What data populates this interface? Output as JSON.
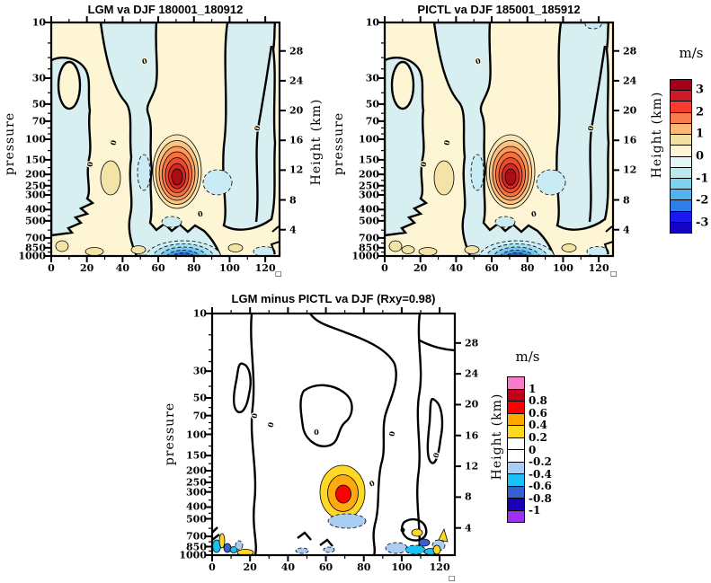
{
  "axes_misc": {
    "x_corner_symbol": "□"
  },
  "chart_data": [
    {
      "type": "contour",
      "title": "LGM va DJF 180001_180912",
      "units": "m/s",
      "ylabel_left": "pressure",
      "ylabel_right": "Height (km)",
      "x_ticks": [
        0,
        20,
        40,
        60,
        80,
        100,
        120
      ],
      "x_range": [
        0,
        128
      ],
      "pressure_ticks": [
        10,
        30,
        50,
        70,
        100,
        150,
        200,
        250,
        300,
        400,
        500,
        700,
        850,
        1000
      ],
      "pressure_range_hPa": [
        10,
        1000
      ],
      "height_km_ticks": [
        28,
        24,
        20,
        16,
        12,
        8,
        4
      ],
      "contour_interval_m_s": 0.5,
      "levels": [
        -3,
        -2.5,
        -2,
        -1.5,
        -1,
        -0.5,
        0,
        0.5,
        1,
        1.5,
        2,
        2.5,
        3
      ],
      "line_style": "zero contour thick solid labeled 0; negative contours dashed",
      "features": [
        {
          "desc": "strong positive anomaly maximum",
          "x": 68,
          "pressure_hPa": 200,
          "value_m_s": "> 3.5"
        },
        {
          "desc": "strong negative anomaly near surface",
          "x": 70,
          "pressure_hPa": 925,
          "value_m_s": "< -3"
        },
        {
          "desc": "weak positive cell",
          "x": 33,
          "pressure_hPa": 200,
          "value_m_s": "0.5 to 1"
        },
        {
          "desc": "weak negative cells",
          "x": "50 and 92",
          "pressure_hPa": 200,
          "value_m_s": "-1 to -0.5"
        },
        {
          "desc": "weak positive patches along surface",
          "x": "5, 25, 50, 103",
          "pressure_hPa": "900-1000",
          "value_m_s": "0.5 to 1"
        }
      ],
      "colorbar": {
        "units": "m/s",
        "tick_labels": [
          "3",
          "2",
          "1",
          "0",
          "-1",
          "-2",
          "-3"
        ],
        "colors": [
          "#a10018",
          "#cb1b28",
          "#f93b31",
          "#f97c4e",
          "#fdb874",
          "#f2e0a2",
          "#fdf5d3",
          "#e2f6f3",
          "#bce9ee",
          "#7fd2ee",
          "#52b2ee",
          "#2f7de8",
          "#1a1aee",
          "#1502c4"
        ]
      }
    },
    {
      "type": "contour",
      "title": "PICTL va DJF 185001_185912",
      "units": "m/s",
      "ylabel_left": "pressure",
      "ylabel_right": "Height (km)",
      "x_ticks": [
        0,
        20,
        40,
        60,
        80,
        100,
        120
      ],
      "x_range": [
        0,
        128
      ],
      "pressure_ticks": [
        10,
        30,
        50,
        70,
        100,
        150,
        200,
        250,
        300,
        400,
        500,
        700,
        850,
        1000
      ],
      "pressure_range_hPa": [
        10,
        1000
      ],
      "height_km_ticks": [
        28,
        24,
        20,
        16,
        12,
        8,
        4
      ],
      "contour_interval_m_s": 0.5,
      "levels": [
        -3,
        -2.5,
        -2,
        -1.5,
        -1,
        -0.5,
        0,
        0.5,
        1,
        1.5,
        2,
        2.5,
        3
      ],
      "line_style": "zero contour thick solid labeled 0; negative contours dashed",
      "features": [
        {
          "desc": "strong positive anomaly maximum",
          "x": 68,
          "pressure_hPa": 200,
          "value_m_s": "> 3.5"
        },
        {
          "desc": "strong negative anomaly near surface",
          "x": 70,
          "pressure_hPa": 925,
          "value_m_s": "< -3"
        },
        {
          "desc": "weak positive cell",
          "x": 33,
          "pressure_hPa": 200,
          "value_m_s": "0.5 to 1"
        },
        {
          "desc": "weak negative cells",
          "x": "50 and 92",
          "pressure_hPa": 200,
          "value_m_s": "-1 to -0.5"
        },
        {
          "desc": "small negative notch at top right corner",
          "x": 115,
          "pressure_hPa": 10,
          "value_m_s": "-0.5"
        }
      ],
      "colorbar": {
        "units": "m/s",
        "tick_labels": [
          "3",
          "2",
          "1",
          "0",
          "-1",
          "-2",
          "-3"
        ],
        "colors": [
          "#a10018",
          "#cb1b28",
          "#f93b31",
          "#f97c4e",
          "#fdb874",
          "#f2e0a2",
          "#fdf5d3",
          "#e2f6f3",
          "#bce9ee",
          "#7fd2ee",
          "#52b2ee",
          "#2f7de8",
          "#1a1aee",
          "#1502c4"
        ]
      }
    },
    {
      "type": "contour",
      "title": "LGM minus PICTL va DJF (Rxy=0.98)",
      "units": "m/s",
      "ylabel_left": "pressure",
      "ylabel_right": "Height (km)",
      "x_ticks": [
        0,
        20,
        40,
        60,
        80,
        100,
        120
      ],
      "x_range": [
        0,
        128
      ],
      "pressure_ticks": [
        10,
        30,
        50,
        70,
        100,
        150,
        200,
        250,
        300,
        400,
        500,
        700,
        850,
        1000
      ],
      "pressure_range_hPa": [
        10,
        1000
      ],
      "height_km_ticks": [
        28,
        24,
        20,
        16,
        12,
        8,
        4
      ],
      "contour_interval_m_s": 0.2,
      "levels": [
        -1,
        -0.8,
        -0.6,
        -0.4,
        -0.2,
        0,
        0.2,
        0.4,
        0.6,
        0.8,
        1
      ],
      "line_style": "zero contour thick solid labeled 0; negative contours dashed",
      "features": [
        {
          "desc": "positive difference maximum",
          "x": 68,
          "pressure_hPa": 300,
          "value_m_s": "0.6 to 0.8"
        },
        {
          "desc": "weak negative patch below maximum",
          "x": 68,
          "pressure_hPa": 480,
          "value_m_s": "-0.4 to -0.2"
        },
        {
          "desc": "noisy small-scale differences near surface, left corner",
          "x": "0-18",
          "pressure_hPa": "700-1000",
          "value_m_s": "-0.8 to +0.6"
        },
        {
          "desc": "noisy small-scale differences near surface, right side",
          "x": "90-128",
          "pressure_hPa": "700-1000",
          "value_m_s": "-0.8 to +0.6"
        }
      ],
      "colorbar": {
        "units": "m/s",
        "tick_labels": [
          "1",
          "0.8",
          "0.6",
          "0.4",
          "0.2",
          "0",
          "-0.2",
          "-0.4",
          "-0.6",
          "-0.8",
          "-1"
        ],
        "colors": [
          "#f87cc8",
          "#c00018",
          "#fc0000",
          "#ffa800",
          "#ffd820",
          "#ffffff",
          "#ffffff",
          "#aacdf2",
          "#19c2f5",
          "#3a5fd0",
          "#1800b8",
          "#a030f0"
        ]
      }
    }
  ]
}
